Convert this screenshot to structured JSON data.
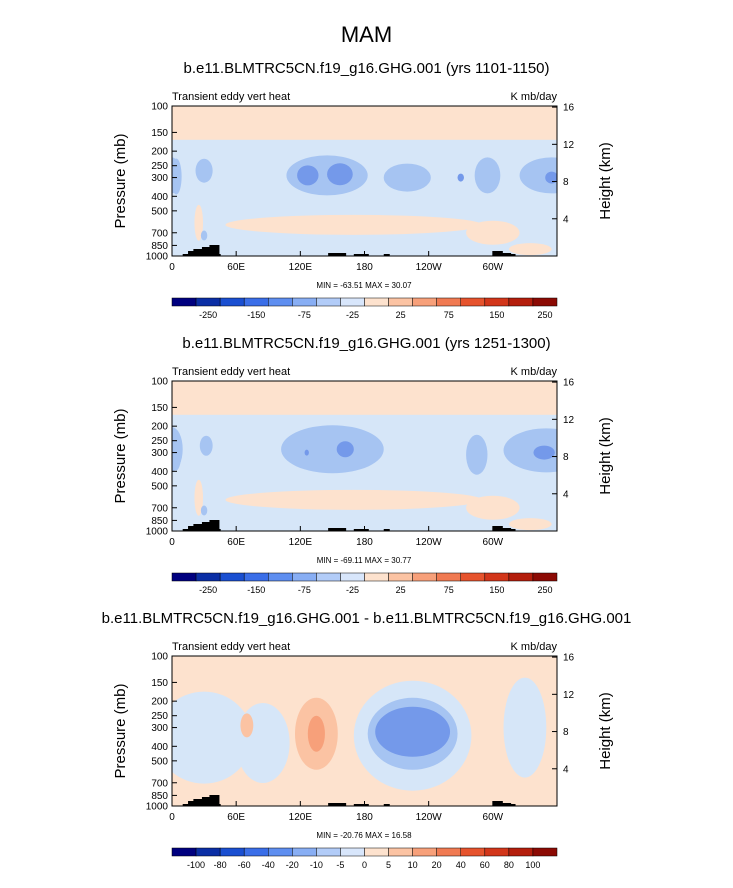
{
  "main_title": "MAM",
  "colors": {
    "pos1": "#fde2ce",
    "neg1": "#d6e6f8",
    "neg2": "#a6c4f2",
    "neg3": "#7499ea",
    "terrain": "#000000"
  },
  "chart_data": [
    {
      "type": "heatmap",
      "title": "b.e11.BLMTRC5CN.f19_g16.GHG.001 (yrs 1101-1150)",
      "left_label": "Transient eddy vert heat",
      "right_label": "K mb/day",
      "ylabel": "Pressure (mb)",
      "y2label": "Height (km)",
      "yticks": [
        "100",
        "150",
        "200",
        "250",
        "300",
        "400",
        "500",
        "700",
        "850",
        "1000"
      ],
      "y2ticks": [
        "4",
        "8",
        "12",
        "16"
      ],
      "xticks": [
        "0",
        "60E",
        "120E",
        "180",
        "120W",
        "60W"
      ],
      "minmax_text": "MIN = -63.51   MAX =  30.07",
      "min": -63.51,
      "max": 30.07,
      "colorbar_labels": [
        "-250",
        "-150",
        "-75",
        "-25",
        "25",
        "75",
        "150",
        "250"
      ],
      "colorbar_colors": [
        "#00007f",
        "#0a2ea5",
        "#1a4fd1",
        "#3a6ee8",
        "#5e8ef0",
        "#88aef4",
        "#b2ccf8",
        "#d8e6fb",
        "#fde2ce",
        "#fbc3a3",
        "#f7a07a",
        "#f07a52",
        "#e6532d",
        "#d2361a",
        "#b41e0c",
        "#8c0a04"
      ],
      "regions": [
        {
          "level": 1,
          "desc": "upper stratosphere positive"
        },
        {
          "level": -1,
          "desc": "mid-troposphere weak negative"
        },
        {
          "level": -2,
          "desc": "jet region negative"
        },
        {
          "level": -3,
          "desc": "core minima"
        }
      ]
    },
    {
      "type": "heatmap",
      "title": "b.e11.BLMTRC5CN.f19_g16.GHG.001 (yrs 1251-1300)",
      "left_label": "Transient eddy vert heat",
      "right_label": "K mb/day",
      "ylabel": "Pressure (mb)",
      "y2label": "Height (km)",
      "yticks": [
        "100",
        "150",
        "200",
        "250",
        "300",
        "400",
        "500",
        "700",
        "850",
        "1000"
      ],
      "y2ticks": [
        "4",
        "8",
        "12",
        "16"
      ],
      "xticks": [
        "0",
        "60E",
        "120E",
        "180",
        "120W",
        "60W"
      ],
      "minmax_text": "MIN = -69.11   MAX =  30.77",
      "min": -69.11,
      "max": 30.77,
      "colorbar_labels": [
        "-250",
        "-150",
        "-75",
        "-25",
        "25",
        "75",
        "150",
        "250"
      ],
      "colorbar_colors": [
        "#00007f",
        "#0a2ea5",
        "#1a4fd1",
        "#3a6ee8",
        "#5e8ef0",
        "#88aef4",
        "#b2ccf8",
        "#d8e6fb",
        "#fde2ce",
        "#fbc3a3",
        "#f7a07a",
        "#f07a52",
        "#e6532d",
        "#d2361a",
        "#b41e0c",
        "#8c0a04"
      ]
    },
    {
      "type": "heatmap",
      "title": "b.e11.BLMTRC5CN.f19_g16.GHG.001 - b.e11.BLMTRC5CN.f19_g16.GHG.001",
      "left_label": "Transient eddy vert heat",
      "right_label": "K mb/day",
      "ylabel": "Pressure (mb)",
      "y2label": "Height (km)",
      "yticks": [
        "100",
        "150",
        "200",
        "250",
        "300",
        "400",
        "500",
        "700",
        "850",
        "1000"
      ],
      "y2ticks": [
        "4",
        "8",
        "12",
        "16"
      ],
      "xticks": [
        "0",
        "60E",
        "120E",
        "180",
        "120W",
        "60W"
      ],
      "minmax_text": "MIN = -20.76   MAX =  16.58",
      "min": -20.76,
      "max": 16.58,
      "colorbar_labels": [
        "-100",
        "-80",
        "-60",
        "-40",
        "-20",
        "-10",
        "-5",
        "0",
        "5",
        "10",
        "20",
        "40",
        "60",
        "80",
        "100"
      ],
      "colorbar_colors": [
        "#00007f",
        "#0a2ea5",
        "#1a4fd1",
        "#3a6ee8",
        "#5e8ef0",
        "#88aef4",
        "#b2ccf8",
        "#d8e6fb",
        "#fde2ce",
        "#fbc3a3",
        "#f7a07a",
        "#f07a52",
        "#e6532d",
        "#d2361a",
        "#b41e0c",
        "#8c0a04"
      ]
    }
  ]
}
